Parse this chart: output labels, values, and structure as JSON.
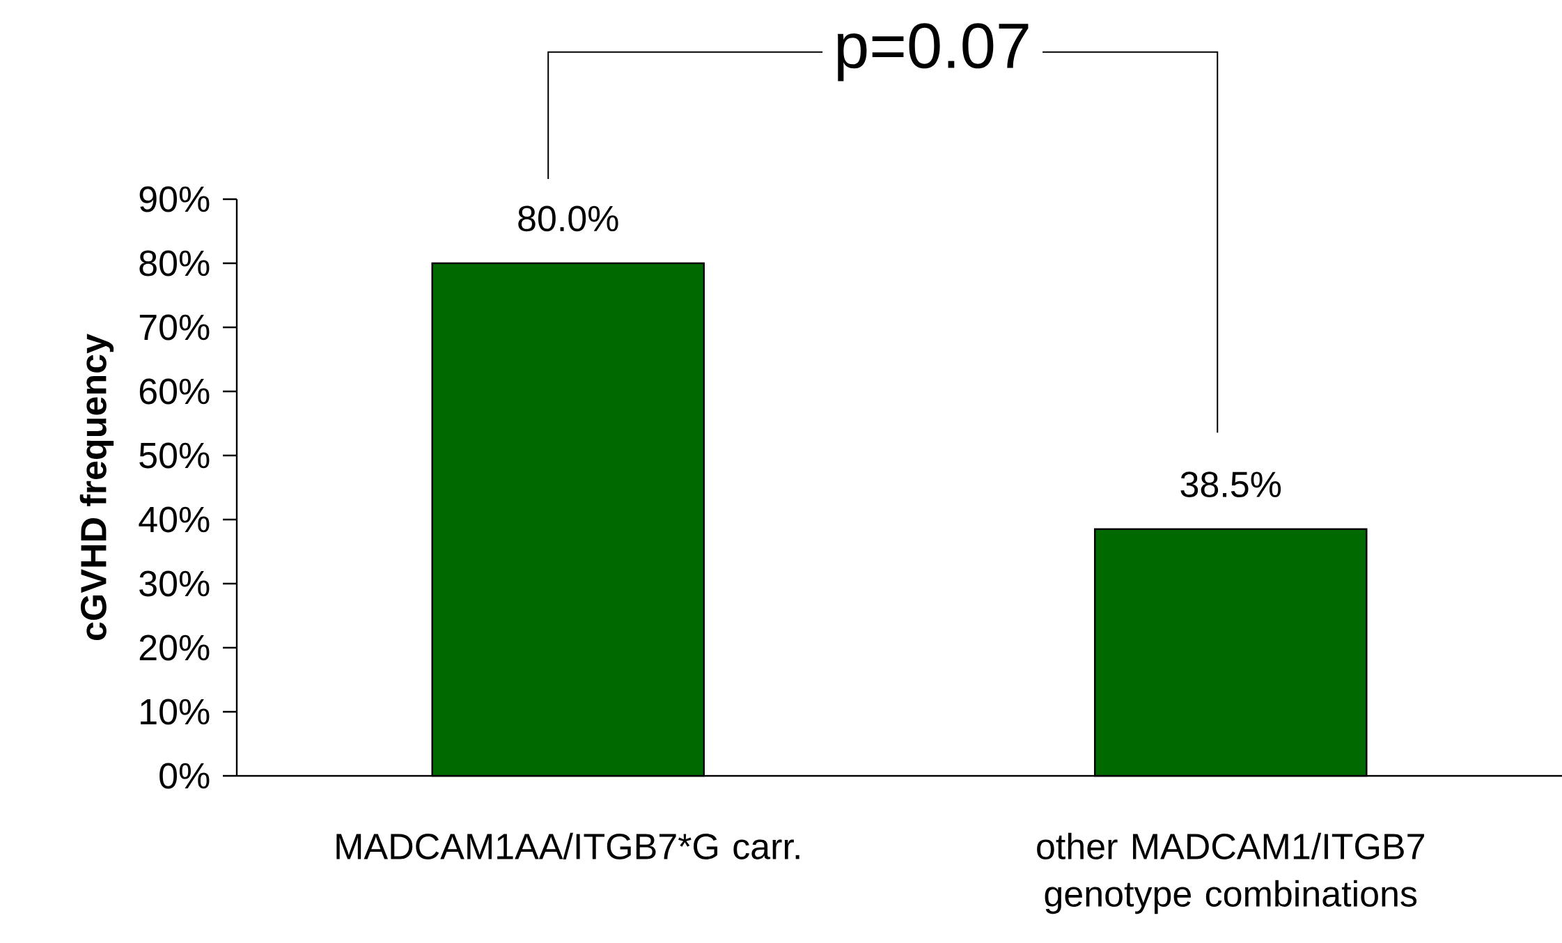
{
  "chart_data": {
    "type": "bar",
    "ylabel": "cGVHD frequency",
    "categories": [
      "MADCAM1AA/ITGB7*G carr.",
      "other MADCAM1/ITGB7 genotype combinations"
    ],
    "values": [
      80.0,
      38.5
    ],
    "color": "#006a00",
    "value_labels": [
      "80.0%",
      "38.5%"
    ],
    "ylim": [
      0,
      90
    ],
    "yticks": [
      {
        "value": 0,
        "label": "0%"
      },
      {
        "value": 10,
        "label": "10%"
      },
      {
        "value": 20,
        "label": "20%"
      },
      {
        "value": 30,
        "label": "30%"
      },
      {
        "value": 40,
        "label": "40%"
      },
      {
        "value": 50,
        "label": "50%"
      },
      {
        "value": 60,
        "label": "60%"
      },
      {
        "value": 70,
        "label": "70%"
      },
      {
        "value": 80,
        "label": "80%"
      },
      {
        "value": 90,
        "label": "90%"
      }
    ],
    "annotations": [
      "p=0.07"
    ]
  }
}
